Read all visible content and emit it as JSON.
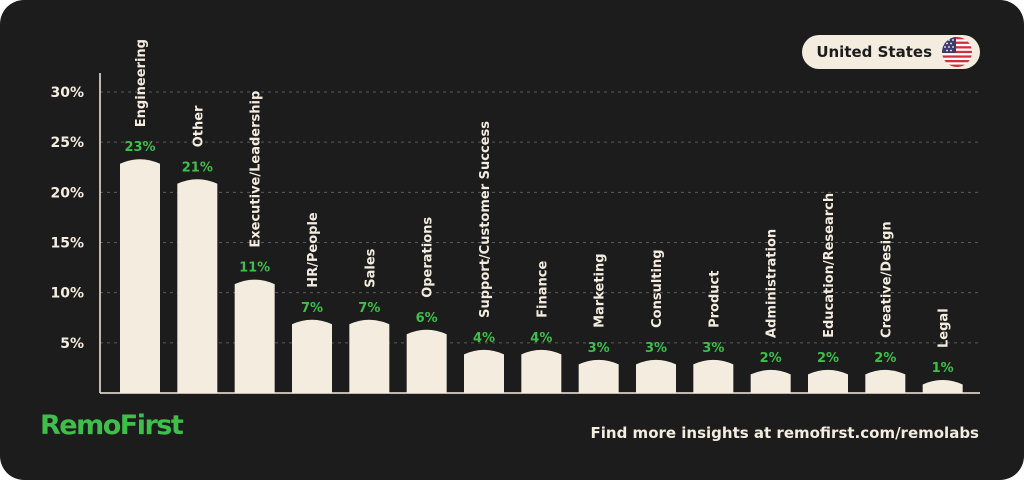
{
  "header": {
    "country_label": "United States",
    "flag_icon": "us-flag-icon"
  },
  "footer": {
    "logo": "RemoFirst",
    "link_text": "Find more insights at remofirst.com/remolabs"
  },
  "colors": {
    "background": "#1c1c1c",
    "bar": "#f4ecdf",
    "value_label": "#3fbf4a",
    "text": "#f4ecdf",
    "brand": "#3fbf4a"
  },
  "chart_data": {
    "type": "bar",
    "categories": [
      "Engineering",
      "Other",
      "Executive/Leadership",
      "HR/People",
      "Sales",
      "Operations",
      "Support/Customer Success",
      "Finance",
      "Marketing",
      "Consulting",
      "Product",
      "Administration",
      "Education/Research",
      "Creative/Design",
      "Legal"
    ],
    "values": [
      23,
      21,
      11,
      7,
      7,
      6,
      4,
      4,
      3,
      3,
      3,
      2,
      2,
      2,
      1
    ],
    "value_labels": [
      "23%",
      "21%",
      "11%",
      "7%",
      "7%",
      "6%",
      "4%",
      "4%",
      "3%",
      "3%",
      "3%",
      "2%",
      "2%",
      "2%",
      "1%"
    ],
    "y_ticks": [
      5,
      10,
      15,
      20,
      25,
      30
    ],
    "y_tick_labels": [
      "5%",
      "10%",
      "15%",
      "20%",
      "25%",
      "30%"
    ],
    "ylim": [
      0,
      30
    ],
    "grid": true,
    "title": "",
    "xlabel": "",
    "ylabel": ""
  }
}
